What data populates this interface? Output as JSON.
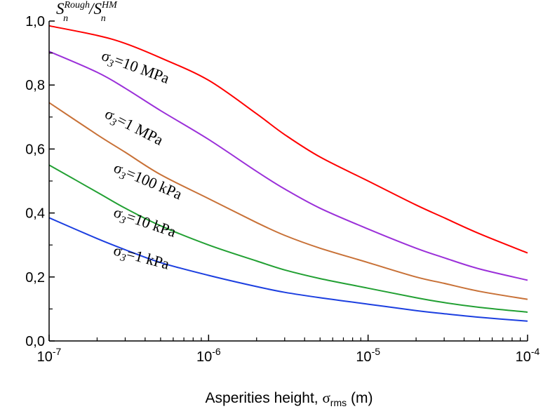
{
  "chart_data": {
    "type": "line",
    "y_axis_title": {
      "numerator_base": "S",
      "numerator_sub": "n",
      "numerator_sup": "Rough",
      "slash": "/",
      "denominator_base": "S",
      "denominator_sub": "n",
      "denominator_sup": "HM"
    },
    "x_axis_title": {
      "prefix": "Asperities height, ",
      "sigma": "σ",
      "sigma_sub": "rms",
      "suffix": " (m)"
    },
    "x_scale": "log",
    "xlim": [
      1e-07,
      0.0001
    ],
    "ylim": [
      0,
      1
    ],
    "x_ticks": [
      {
        "value": 1e-07,
        "base": "10",
        "exp": "-7"
      },
      {
        "value": 1e-06,
        "base": "10",
        "exp": "-6"
      },
      {
        "value": 1e-05,
        "base": "10",
        "exp": "-5"
      },
      {
        "value": 0.0001,
        "base": "10",
        "exp": "-4"
      }
    ],
    "y_ticks": [
      {
        "value": 0.0,
        "label": "0,0"
      },
      {
        "value": 0.2,
        "label": "0,2"
      },
      {
        "value": 0.4,
        "label": "0,4"
      },
      {
        "value": 0.6,
        "label": "0,6"
      },
      {
        "value": 0.8,
        "label": "0,8"
      },
      {
        "value": 1.0,
        "label": "1,0"
      }
    ],
    "y_minor_ticks": [
      0.1,
      0.3,
      0.5,
      0.7,
      0.9
    ],
    "grid": false,
    "series": [
      {
        "name_sigma": "σ",
        "name_sub": "3",
        "name_value": "=10 MPa",
        "color": "#ff0000",
        "x": [
          1e-07,
          2e-07,
          3e-07,
          5e-07,
          1e-06,
          2e-06,
          3e-06,
          5e-06,
          1e-05,
          2e-05,
          3e-05,
          5e-05,
          0.0001
        ],
        "y": [
          0.985,
          0.955,
          0.93,
          0.885,
          0.815,
          0.71,
          0.645,
          0.575,
          0.5,
          0.425,
          0.385,
          0.335,
          0.275
        ]
      },
      {
        "name_sigma": "σ",
        "name_sub": "3",
        "name_value": "=1 MPa",
        "color": "#9b30d9",
        "x": [
          1e-07,
          2e-07,
          3e-07,
          5e-07,
          1e-06,
          2e-06,
          3e-06,
          5e-06,
          1e-05,
          2e-05,
          3e-05,
          5e-05,
          0.0001
        ],
        "y": [
          0.905,
          0.84,
          0.79,
          0.72,
          0.63,
          0.53,
          0.475,
          0.415,
          0.35,
          0.29,
          0.26,
          0.225,
          0.19
        ]
      },
      {
        "name_sigma": "σ",
        "name_sub": "3",
        "name_value": "=100 kPa",
        "color": "#c87137",
        "x": [
          1e-07,
          2e-07,
          3e-07,
          5e-07,
          1e-06,
          2e-06,
          3e-06,
          5e-06,
          1e-05,
          2e-05,
          3e-05,
          5e-05,
          0.0001
        ],
        "y": [
          0.745,
          0.645,
          0.59,
          0.52,
          0.445,
          0.37,
          0.33,
          0.29,
          0.245,
          0.2,
          0.18,
          0.155,
          0.13
        ]
      },
      {
        "name_sigma": "σ",
        "name_sub": "3",
        "name_value": "=10 kPa",
        "color": "#22a033",
        "x": [
          1e-07,
          2e-07,
          3e-07,
          5e-07,
          1e-06,
          2e-06,
          3e-06,
          5e-06,
          1e-05,
          2e-05,
          3e-05,
          5e-05,
          0.0001
        ],
        "y": [
          0.55,
          0.465,
          0.415,
          0.36,
          0.3,
          0.25,
          0.222,
          0.195,
          0.165,
          0.135,
          0.12,
          0.105,
          0.09
        ]
      },
      {
        "name_sigma": "σ",
        "name_sub": "3",
        "name_value": "=1 kPa",
        "color": "#1c3fe0",
        "x": [
          1e-07,
          2e-07,
          3e-07,
          5e-07,
          1e-06,
          2e-06,
          3e-06,
          5e-06,
          1e-05,
          2e-05,
          3e-05,
          5e-05,
          0.0001
        ],
        "y": [
          0.385,
          0.32,
          0.285,
          0.245,
          0.205,
          0.17,
          0.152,
          0.135,
          0.115,
          0.095,
          0.085,
          0.074,
          0.062
        ]
      }
    ]
  }
}
